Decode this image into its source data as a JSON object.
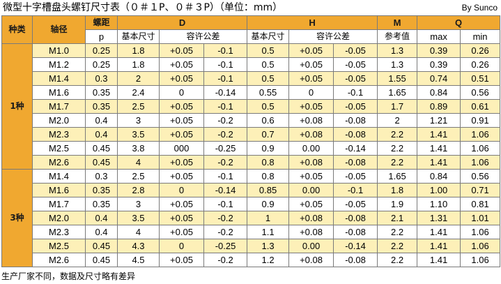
{
  "title": "微型十字槽盘头螺钉尺寸表（０＃１P、０＃３P）（单位：mm）",
  "brand": "By Sunco",
  "footer": "生产厂家不同，数据及尺寸略有差异",
  "header": {
    "kind": "种类",
    "diameter": "轴径",
    "pitch": "螺距",
    "D": "D",
    "H": "H",
    "M": "M",
    "Q": "Q",
    "p": "p",
    "basic": "基本尺寸",
    "tolerance": "容许公差",
    "ref": "参考值",
    "max": "max",
    "min": "min"
  },
  "groups": [
    {
      "label": "1种",
      "rows": [
        [
          "M1.0",
          "0.25",
          "1.8",
          "+0.05",
          "-0.1",
          "0.5",
          "+0.05",
          "-0.05",
          "1.3",
          "0.39",
          "0.26"
        ],
        [
          "M1.2",
          "0.25",
          "1.8",
          "+0.05",
          "-0.1",
          "0.5",
          "+0.05",
          "-0.05",
          "1.3",
          "0.39",
          "0.26"
        ],
        [
          "M1.4",
          "0.3",
          "2",
          "+0.05",
          "-0.1",
          "0.5",
          "+0.05",
          "-0.05",
          "1.55",
          "0.74",
          "0.51"
        ],
        [
          "M1.6",
          "0.35",
          "2.4",
          "0",
          "-0.14",
          "0.55",
          "0",
          "-0.1",
          "1.65",
          "0.84",
          "0.56"
        ],
        [
          "M1.7",
          "0.35",
          "2.5",
          "+0.05",
          "-0.1",
          "0.5",
          "+0.05",
          "-0.05",
          "1.7",
          "0.89",
          "0.61"
        ],
        [
          "M2.0",
          "0.4",
          "3",
          "+0.05",
          "-0.2",
          "0.6",
          "+0.08",
          "-0.08",
          "2",
          "1.21",
          "0.91"
        ],
        [
          "M2.3",
          "0.4",
          "3.5",
          "+0.05",
          "-0.2",
          "0.7",
          "+0.08",
          "-0.08",
          "2.2",
          "1.41",
          "1.06"
        ],
        [
          "M2.5",
          "0.45",
          "3.8",
          "000",
          "-0.25",
          "0.9",
          "0.00",
          "-0.14",
          "2.2",
          "1.41",
          "1.06"
        ],
        [
          "M2.6",
          "0.45",
          "4",
          "+0.05",
          "-0.2",
          "0.8",
          "+0.08",
          "-0.08",
          "2.2",
          "1.41",
          "1.06"
        ]
      ]
    },
    {
      "label": "3种",
      "rows": [
        [
          "M1.4",
          "0.3",
          "2.5",
          "+0.05",
          "-0.1",
          "0.8",
          "+0.05",
          "-0.05",
          "1.65",
          "0.84",
          "0.56"
        ],
        [
          "M1.6",
          "0.35",
          "2.8",
          "0",
          "-0.14",
          "0.85",
          "0.00",
          "-0.1",
          "1.8",
          "1.00",
          "0.71"
        ],
        [
          "M1.7",
          "0.35",
          "3",
          "+0.05",
          "-0.1",
          "0.9",
          "+0.05",
          "-0.05",
          "1.9",
          "1.10",
          "0.81"
        ],
        [
          "M2.0",
          "0.4",
          "3.5",
          "+0.05",
          "-0.2",
          "1",
          "+0.08",
          "-0.08",
          "2.1",
          "1.31",
          "1.01"
        ],
        [
          "M2.3",
          "0.4",
          "4",
          "+0.05",
          "-0.2",
          "1.1",
          "+0.08",
          "-0.08",
          "2.2",
          "1.41",
          "1.06"
        ],
        [
          "M2.5",
          "0.45",
          "4.3",
          "0",
          "-0.25",
          "1.3",
          "0.00",
          "-0.14",
          "2.2",
          "1.41",
          "1.06"
        ],
        [
          "M2.6",
          "0.45",
          "4.5",
          "+0.05",
          "-0.2",
          "1.2",
          "+0.08",
          "-0.08",
          "2.2",
          "1.41",
          "1.06"
        ]
      ]
    }
  ]
}
